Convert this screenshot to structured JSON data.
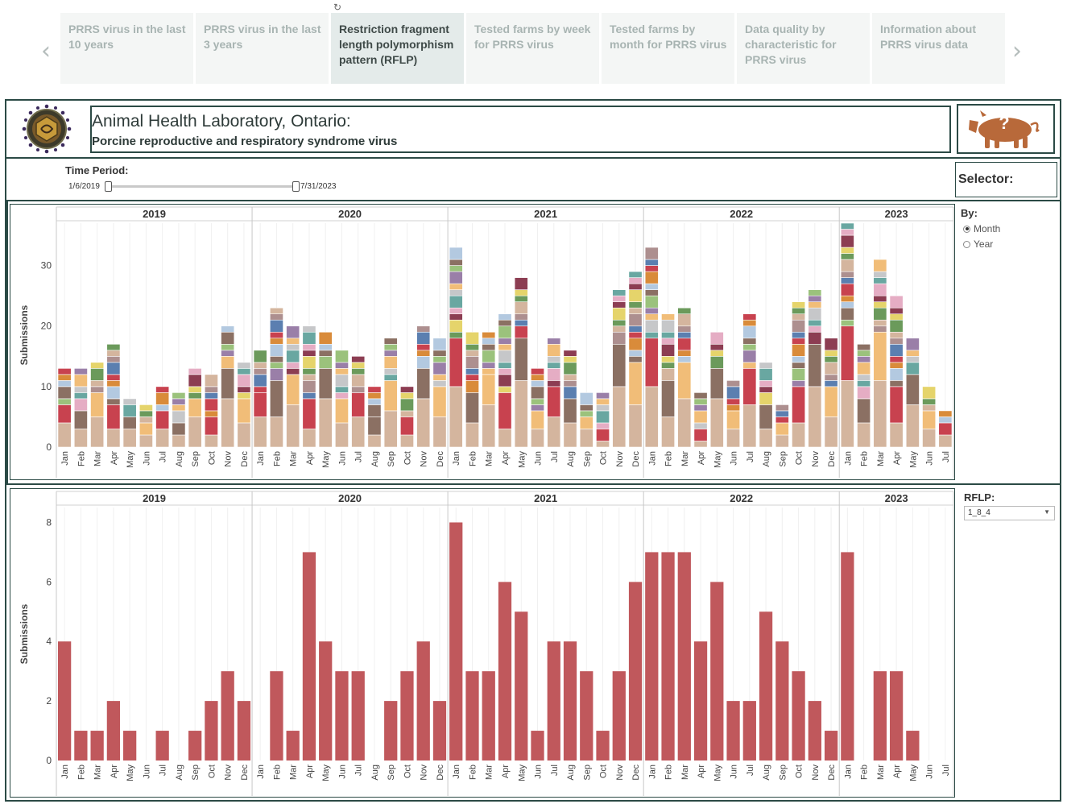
{
  "tabs": [
    {
      "label": "PRRS virus in the last 10 years",
      "active": false
    },
    {
      "label": "PRRS virus in the last 3 years",
      "active": false
    },
    {
      "label": "Restriction fragment length polymorphism pattern (RFLP)",
      "active": true
    },
    {
      "label": "Tested farms by week for PRRS virus",
      "active": false
    },
    {
      "label": "Tested farms by month for PRRS virus",
      "active": false
    },
    {
      "label": "Data quality by characteristic for PRRS virus",
      "active": false
    },
    {
      "label": "Information about PRRS virus data",
      "active": false
    }
  ],
  "nav": {
    "prev_icon": "‹",
    "next_icon": "›"
  },
  "header": {
    "title": "Animal Health Laboratory, Ontario:",
    "subtitle": "Porcine reproductive and respiratory syndrome virus",
    "pig_symbol": "?"
  },
  "time_period": {
    "label": "Time Period:",
    "start": "1/6/2019",
    "end": "7/31/2023"
  },
  "selector": {
    "label": "Selector:"
  },
  "by": {
    "label": "By:",
    "options": [
      "Month",
      "Year"
    ],
    "selected": "Month"
  },
  "rflp": {
    "label": "RFLP:",
    "value": "1_8_4"
  },
  "colors": {
    "frame": "#2b4a45",
    "bar_red": "#c0585c",
    "palette": [
      "#d4b59e",
      "#c8424f",
      "#8b7063",
      "#f1bd78",
      "#e5adc4",
      "#6b9a5b",
      "#5b7fb0",
      "#b3c9e0",
      "#9a7fa8",
      "#69a7a1",
      "#e5d46b",
      "#ad8f8f",
      "#d98b3a",
      "#9bc27c",
      "#c6c7c9",
      "#8c3d52"
    ]
  },
  "chart_data": [
    {
      "type": "bar",
      "stacked": true,
      "title": "",
      "ylabel": "Submissions",
      "ylim": [
        0,
        37
      ],
      "yticks": [
        0,
        10,
        20,
        30
      ],
      "years": [
        {
          "label": "2019",
          "months": [
            "Jan",
            "Feb",
            "Mar",
            "Apr",
            "May",
            "Jun",
            "Jul",
            "Aug",
            "Sep",
            "Oct",
            "Nov",
            "Dec"
          ]
        },
        {
          "label": "2020",
          "months": [
            "Jan",
            "Feb",
            "Mar",
            "Apr",
            "May",
            "Jun",
            "Jul",
            "Aug",
            "Sep",
            "Oct",
            "Nov",
            "Dec"
          ]
        },
        {
          "label": "2021",
          "months": [
            "Jan",
            "Feb",
            "Mar",
            "Apr",
            "May",
            "Jun",
            "Jul",
            "Aug",
            "Sep",
            "Oct",
            "Nov",
            "Dec"
          ]
        },
        {
          "label": "2022",
          "months": [
            "Jan",
            "Feb",
            "Mar",
            "Apr",
            "May",
            "Jun",
            "Jul",
            "Aug",
            "Sep",
            "Oct",
            "Nov",
            "Dec"
          ]
        },
        {
          "label": "2023",
          "months": [
            "Jan",
            "Feb",
            "Mar",
            "Apr",
            "May",
            "Jun",
            "Jul"
          ]
        }
      ],
      "totals": [
        13,
        13,
        14,
        17,
        8,
        7,
        10,
        9,
        13,
        12,
        20,
        14,
        16,
        23,
        20,
        20,
        19,
        16,
        15,
        10,
        18,
        10,
        20,
        18,
        33,
        19,
        19,
        22,
        28,
        13,
        18,
        16,
        9,
        9,
        26,
        29,
        33,
        22,
        23,
        9,
        19,
        11,
        22,
        14,
        7,
        24,
        26,
        18,
        37,
        17,
        31,
        25,
        18,
        10,
        6
      ]
    },
    {
      "type": "bar",
      "title": "",
      "ylabel": "Submissions",
      "ylim": [
        0,
        8.5
      ],
      "yticks": [
        0,
        2,
        4,
        6,
        8
      ],
      "series": [
        {
          "name": "1_8_4",
          "values": [
            4,
            1,
            1,
            2,
            1,
            0,
            1,
            0,
            1,
            2,
            3,
            2,
            0,
            3,
            1,
            7,
            4,
            3,
            3,
            0,
            2,
            3,
            4,
            2,
            8,
            3,
            3,
            6,
            5,
            1,
            4,
            4,
            3,
            1,
            3,
            6,
            7,
            7,
            7,
            4,
            6,
            2,
            2,
            5,
            4,
            3,
            2,
            1,
            7,
            0,
            3,
            3,
            1,
            0,
            0
          ]
        }
      ]
    }
  ]
}
